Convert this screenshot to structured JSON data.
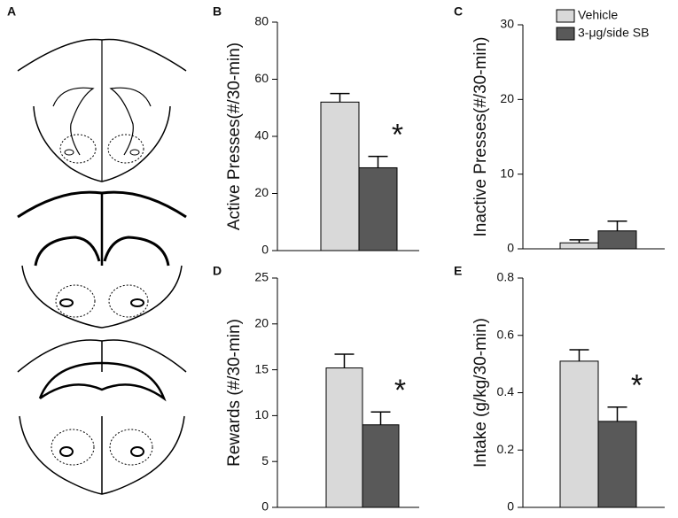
{
  "brain_panel": {
    "label": "A"
  },
  "chart_data": [
    {
      "type": "bar",
      "panel": "B",
      "ylabel": "Active Presses(#/30-min)",
      "categories": [
        null
      ],
      "ylim": [
        0,
        80
      ],
      "yticks": [
        0,
        20,
        40,
        60,
        80
      ],
      "annotation": "*",
      "series": [
        {
          "color": "#d9d9d9",
          "values": [
            52
          ],
          "errors": [
            3
          ]
        },
        {
          "color": "#595959",
          "values": [
            29
          ],
          "errors": [
            4
          ]
        }
      ]
    },
    {
      "type": "bar",
      "panel": "C",
      "ylabel": "Inactive Presses(#/30-min)",
      "categories": [
        null
      ],
      "ylim": [
        0,
        30
      ],
      "yticks": [
        0,
        10,
        20,
        30
      ],
      "legend": "top-right",
      "series": [
        {
          "name": "Vehicle",
          "color": "#d9d9d9",
          "values": [
            0.8
          ],
          "errors": [
            0.4
          ]
        },
        {
          "name": "3-μg/side SB",
          "color": "#595959",
          "values": [
            2.4
          ],
          "errors": [
            1.3
          ]
        }
      ]
    },
    {
      "type": "bar",
      "panel": "D",
      "ylabel": "Rewards (#/30-min)",
      "categories": [
        null
      ],
      "ylim": [
        0,
        25
      ],
      "yticks": [
        0,
        5,
        10,
        15,
        20,
        25
      ],
      "annotation": "*",
      "series": [
        {
          "color": "#d9d9d9",
          "values": [
            15.2
          ],
          "errors": [
            1.5
          ]
        },
        {
          "color": "#595959",
          "values": [
            9
          ],
          "errors": [
            1.4
          ]
        }
      ]
    },
    {
      "type": "bar",
      "panel": "E",
      "ylabel": "Intake (g/kg/30-min)",
      "categories": [
        null
      ],
      "ylim": [
        0,
        0.8
      ],
      "yticks": [
        0,
        0.2,
        0.4,
        0.6,
        0.8
      ],
      "annotation": "*",
      "series": [
        {
          "color": "#d9d9d9",
          "values": [
            0.51
          ],
          "errors": [
            0.04
          ]
        },
        {
          "color": "#595959",
          "values": [
            0.3
          ],
          "errors": [
            0.05
          ]
        }
      ]
    }
  ]
}
